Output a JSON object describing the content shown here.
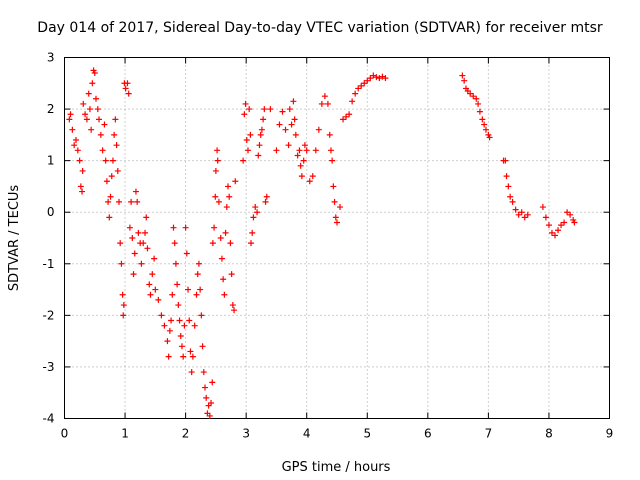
{
  "chart_data": {
    "type": "scatter",
    "title": "Day 014 of 2017, Sidereal Day-to-day VTEC variation (SDTVAR) for receiver mtsr",
    "xlabel": "GPS time / hours",
    "ylabel": "SDTVAR / TECUs",
    "xlim": [
      0,
      9
    ],
    "ylim": [
      -4,
      3
    ],
    "xticks": [
      "0",
      "1",
      "2",
      "3",
      "4",
      "5",
      "6",
      "7",
      "8",
      "9"
    ],
    "yticks": [
      "3",
      "2",
      "1",
      "0",
      "-1",
      "-2",
      "-3",
      "-4"
    ],
    "grid": true,
    "marker": "+",
    "color": "#ff0000",
    "series": [
      {
        "name": "SDTVAR",
        "points": [
          [
            0.08,
            1.8
          ],
          [
            0.1,
            1.9
          ],
          [
            0.13,
            1.6
          ],
          [
            0.16,
            1.3
          ],
          [
            0.19,
            1.4
          ],
          [
            0.22,
            1.2
          ],
          [
            0.25,
            1.0
          ],
          [
            0.27,
            0.5
          ],
          [
            0.29,
            0.4
          ],
          [
            0.3,
            0.8
          ],
          [
            0.31,
            2.1
          ],
          [
            0.34,
            1.9
          ],
          [
            0.37,
            1.8
          ],
          [
            0.4,
            2.3
          ],
          [
            0.42,
            2.0
          ],
          [
            0.44,
            1.6
          ],
          [
            0.46,
            2.5
          ],
          [
            0.48,
            2.75
          ],
          [
            0.5,
            2.7
          ],
          [
            0.52,
            2.2
          ],
          [
            0.55,
            2.0
          ],
          [
            0.57,
            1.8
          ],
          [
            0.6,
            1.5
          ],
          [
            0.63,
            1.2
          ],
          [
            0.66,
            1.7
          ],
          [
            0.68,
            1.0
          ],
          [
            0.7,
            0.6
          ],
          [
            0.72,
            0.2
          ],
          [
            0.74,
            -0.1
          ],
          [
            0.76,
            0.3
          ],
          [
            0.78,
            0.7
          ],
          [
            0.8,
            1.0
          ],
          [
            0.82,
            1.5
          ],
          [
            0.84,
            1.8
          ],
          [
            0.86,
            1.3
          ],
          [
            0.88,
            0.8
          ],
          [
            0.9,
            0.2
          ],
          [
            0.92,
            -0.6
          ],
          [
            0.94,
            -1.0
          ],
          [
            0.96,
            -1.6
          ],
          [
            0.97,
            -2.0
          ],
          [
            0.98,
            -1.8
          ],
          [
            0.99,
            2.5
          ],
          [
            1.01,
            2.4
          ],
          [
            1.04,
            2.5
          ],
          [
            1.06,
            2.3
          ],
          [
            1.08,
            -0.3
          ],
          [
            1.1,
            0.2
          ],
          [
            1.12,
            -0.5
          ],
          [
            1.14,
            -1.2
          ],
          [
            1.16,
            -0.8
          ],
          [
            1.18,
            0.4
          ],
          [
            1.2,
            0.2
          ],
          [
            1.22,
            -0.4
          ],
          [
            1.25,
            -0.6
          ],
          [
            1.27,
            -1.0
          ],
          [
            1.3,
            -0.6
          ],
          [
            1.33,
            -0.4
          ],
          [
            1.35,
            -0.1
          ],
          [
            1.37,
            -0.7
          ],
          [
            1.4,
            -1.4
          ],
          [
            1.42,
            -1.6
          ],
          [
            1.45,
            -1.2
          ],
          [
            1.48,
            -0.9
          ],
          [
            1.5,
            -1.5
          ],
          [
            1.55,
            -1.7
          ],
          [
            1.6,
            -2.0
          ],
          [
            1.65,
            -2.2
          ],
          [
            1.7,
            -2.5
          ],
          [
            1.72,
            -2.8
          ],
          [
            1.74,
            -2.3
          ],
          [
            1.76,
            -2.1
          ],
          [
            1.78,
            -1.6
          ],
          [
            1.8,
            -0.3
          ],
          [
            1.82,
            -0.6
          ],
          [
            1.84,
            -1.0
          ],
          [
            1.86,
            -1.4
          ],
          [
            1.88,
            -1.8
          ],
          [
            1.9,
            -2.1
          ],
          [
            1.92,
            -2.4
          ],
          [
            1.94,
            -2.6
          ],
          [
            1.96,
            -2.8
          ],
          [
            1.98,
            -2.2
          ],
          [
            2.0,
            -0.3
          ],
          [
            2.02,
            -0.8
          ],
          [
            2.04,
            -1.5
          ],
          [
            2.06,
            -2.1
          ],
          [
            2.08,
            -2.7
          ],
          [
            2.1,
            -3.1
          ],
          [
            2.12,
            -2.8
          ],
          [
            2.15,
            -2.2
          ],
          [
            2.18,
            -1.6
          ],
          [
            2.2,
            -1.2
          ],
          [
            2.22,
            -1.0
          ],
          [
            2.24,
            -1.5
          ],
          [
            2.26,
            -2.0
          ],
          [
            2.28,
            -2.6
          ],
          [
            2.3,
            -3.1
          ],
          [
            2.32,
            -3.4
          ],
          [
            2.34,
            -3.6
          ],
          [
            2.36,
            -3.9
          ],
          [
            2.38,
            -3.75
          ],
          [
            2.4,
            -3.95
          ],
          [
            2.42,
            -3.7
          ],
          [
            2.44,
            -3.3
          ],
          [
            2.45,
            -0.6
          ],
          [
            2.47,
            -0.3
          ],
          [
            2.49,
            0.3
          ],
          [
            2.5,
            0.8
          ],
          [
            2.52,
            1.2
          ],
          [
            2.53,
            1.0
          ],
          [
            2.55,
            0.2
          ],
          [
            2.58,
            -0.5
          ],
          [
            2.6,
            -0.9
          ],
          [
            2.62,
            -1.3
          ],
          [
            2.64,
            -1.6
          ],
          [
            2.66,
            -0.4
          ],
          [
            2.68,
            0.1
          ],
          [
            2.7,
            0.5
          ],
          [
            2.72,
            0.3
          ],
          [
            2.74,
            -0.6
          ],
          [
            2.76,
            -1.2
          ],
          [
            2.78,
            -1.8
          ],
          [
            2.8,
            -1.9
          ],
          [
            2.82,
            0.6
          ],
          [
            2.95,
            1.0
          ],
          [
            2.97,
            1.9
          ],
          [
            2.99,
            2.1
          ],
          [
            3.01,
            1.4
          ],
          [
            3.03,
            1.2
          ],
          [
            3.05,
            2.0
          ],
          [
            3.07,
            1.5
          ],
          [
            3.08,
            -0.6
          ],
          [
            3.1,
            -0.4
          ],
          [
            3.12,
            -0.1
          ],
          [
            3.15,
            0.1
          ],
          [
            3.18,
            0.0
          ],
          [
            3.2,
            1.1
          ],
          [
            3.22,
            1.3
          ],
          [
            3.24,
            1.5
          ],
          [
            3.26,
            1.6
          ],
          [
            3.28,
            1.8
          ],
          [
            3.3,
            2.0
          ],
          [
            3.32,
            0.2
          ],
          [
            3.34,
            0.3
          ],
          [
            3.4,
            2.0
          ],
          [
            3.5,
            1.2
          ],
          [
            3.55,
            1.7
          ],
          [
            3.6,
            1.95
          ],
          [
            3.65,
            1.6
          ],
          [
            3.7,
            1.3
          ],
          [
            3.72,
            2.0
          ],
          [
            3.75,
            1.7
          ],
          [
            3.78,
            2.15
          ],
          [
            3.8,
            1.8
          ],
          [
            3.82,
            1.5
          ],
          [
            3.85,
            1.1
          ],
          [
            3.88,
            1.2
          ],
          [
            3.9,
            0.9
          ],
          [
            3.92,
            0.7
          ],
          [
            3.95,
            1.0
          ],
          [
            3.97,
            1.3
          ],
          [
            4.0,
            1.2
          ],
          [
            4.05,
            0.6
          ],
          [
            4.1,
            0.7
          ],
          [
            4.15,
            1.2
          ],
          [
            4.2,
            1.6
          ],
          [
            4.25,
            2.1
          ],
          [
            4.3,
            2.25
          ],
          [
            4.35,
            2.1
          ],
          [
            4.38,
            1.5
          ],
          [
            4.4,
            1.2
          ],
          [
            4.42,
            1.0
          ],
          [
            4.44,
            0.5
          ],
          [
            4.46,
            0.2
          ],
          [
            4.48,
            -0.1
          ],
          [
            4.5,
            -0.2
          ],
          [
            4.55,
            0.1
          ],
          [
            4.6,
            1.8
          ],
          [
            4.65,
            1.85
          ],
          [
            4.7,
            1.9
          ],
          [
            4.75,
            2.15
          ],
          [
            4.8,
            2.3
          ],
          [
            4.85,
            2.4
          ],
          [
            4.9,
            2.45
          ],
          [
            4.95,
            2.5
          ],
          [
            5.0,
            2.55
          ],
          [
            5.05,
            2.6
          ],
          [
            5.1,
            2.65
          ],
          [
            5.15,
            2.62
          ],
          [
            5.2,
            2.6
          ],
          [
            5.25,
            2.63
          ],
          [
            5.3,
            2.6
          ],
          [
            6.57,
            2.65
          ],
          [
            6.6,
            2.55
          ],
          [
            6.63,
            2.4
          ],
          [
            6.66,
            2.35
          ],
          [
            6.7,
            2.3
          ],
          [
            6.75,
            2.25
          ],
          [
            6.8,
            2.2
          ],
          [
            6.83,
            2.1
          ],
          [
            6.86,
            1.95
          ],
          [
            6.9,
            1.8
          ],
          [
            6.93,
            1.7
          ],
          [
            6.96,
            1.6
          ],
          [
            7.0,
            1.5
          ],
          [
            7.02,
            1.45
          ],
          [
            7.25,
            1.0
          ],
          [
            7.28,
            1.0
          ],
          [
            7.3,
            0.7
          ],
          [
            7.33,
            0.5
          ],
          [
            7.36,
            0.3
          ],
          [
            7.4,
            0.2
          ],
          [
            7.45,
            0.05
          ],
          [
            7.5,
            -0.05
          ],
          [
            7.55,
            0.0
          ],
          [
            7.6,
            -0.1
          ],
          [
            7.65,
            -0.05
          ],
          [
            7.9,
            0.1
          ],
          [
            7.95,
            -0.1
          ],
          [
            8.0,
            -0.25
          ],
          [
            8.05,
            -0.4
          ],
          [
            8.1,
            -0.45
          ],
          [
            8.15,
            -0.35
          ],
          [
            8.2,
            -0.25
          ],
          [
            8.25,
            -0.2
          ],
          [
            8.3,
            0.0
          ],
          [
            8.35,
            -0.05
          ],
          [
            8.4,
            -0.15
          ],
          [
            8.42,
            -0.2
          ]
        ]
      }
    ]
  }
}
